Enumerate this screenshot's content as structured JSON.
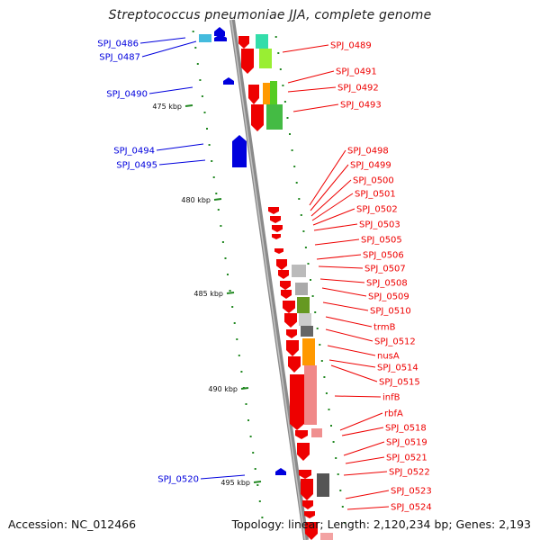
{
  "title": "Streptococcus pneumoniae JJA, complete genome",
  "footer": {
    "accession": "Accession: NC_012466",
    "topology": "Topology: linear; Length: 2,120,234 bp; Genes: 2,193"
  },
  "colors": {
    "reverse_strand": "#0000dd",
    "forward_strand": "#ee0000",
    "backbone": "#888888",
    "tick": "#228822"
  },
  "axis": {
    "unit": "kbp",
    "ticks": [
      {
        "label": "475 kbp",
        "value": 475
      },
      {
        "label": "480 kbp",
        "value": 480
      },
      {
        "label": "485 kbp",
        "value": 485
      },
      {
        "label": "490 kbp",
        "value": 490
      },
      {
        "label": "495 kbp",
        "value": 495
      }
    ]
  },
  "reverse_genes": [
    "SPJ_0486",
    "SPJ_0487",
    "SPJ_0490",
    "SPJ_0494",
    "SPJ_0495",
    "SPJ_0520"
  ],
  "forward_genes": [
    "SPJ_0489",
    "SPJ_0491",
    "SPJ_0492",
    "SPJ_0493",
    "SPJ_0498",
    "SPJ_0499",
    "SPJ_0500",
    "SPJ_0501",
    "SPJ_0502",
    "SPJ_0503",
    "SPJ_0505",
    "SPJ_0506",
    "SPJ_0507",
    "SPJ_0508",
    "SPJ_0509",
    "SPJ_0510",
    "trmB",
    "SPJ_0512",
    "nusA",
    "SPJ_0514",
    "SPJ_0515",
    "infB",
    "rbfA",
    "SPJ_0518",
    "SPJ_0519",
    "SPJ_0521",
    "SPJ_0522",
    "SPJ_0523",
    "SPJ_0524"
  ]
}
